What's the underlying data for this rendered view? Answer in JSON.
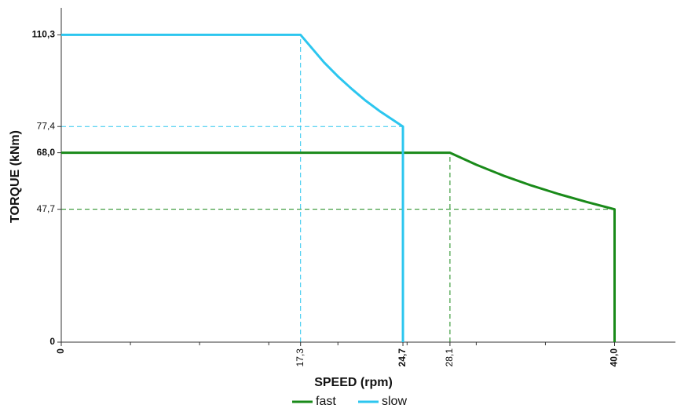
{
  "chart_data": {
    "type": "line",
    "x_label": "SPEED (rpm)",
    "y_label": "TORQUE (kNm)",
    "series": [
      {
        "name": "fast",
        "color": "#198a19",
        "x": [
          0,
          28.1,
          30,
          32,
          34,
          36,
          38,
          40,
          40
        ],
        "values": [
          68,
          68,
          63.7,
          59.7,
          56.2,
          53.1,
          50.3,
          47.7,
          0
        ]
      },
      {
        "name": "slow",
        "color": "#2cc6ef",
        "x": [
          0,
          17.3,
          19,
          20,
          21,
          22,
          23,
          24.7,
          24.7
        ],
        "values": [
          110.3,
          110.3,
          100.4,
          95.4,
          90.9,
          86.7,
          83.0,
          77.4,
          0
        ]
      }
    ],
    "xlim": [
      0,
      44.4
    ],
    "ylim": [
      0,
      120
    ],
    "xticks": [
      {
        "value": 0,
        "label": "0",
        "bold": true
      },
      {
        "value": 17.3,
        "label": "17,3"
      },
      {
        "value": 24.7,
        "label": "24,7",
        "bold": true
      },
      {
        "value": 28.1,
        "label": "28,1"
      },
      {
        "value": 40,
        "label": "40,0",
        "bold": true
      }
    ],
    "xminor_ticks": [
      5,
      10,
      15,
      20,
      25,
      30,
      35
    ],
    "yticks": [
      {
        "value": 0,
        "label": "0",
        "bold": true
      },
      {
        "value": 47.7,
        "label": "47,7"
      },
      {
        "value": 68,
        "label": "68,0",
        "bold": true
      },
      {
        "value": 77.4,
        "label": "77,4"
      },
      {
        "value": 110.3,
        "label": "110,3",
        "bold": true
      }
    ],
    "legend": "bottom"
  }
}
